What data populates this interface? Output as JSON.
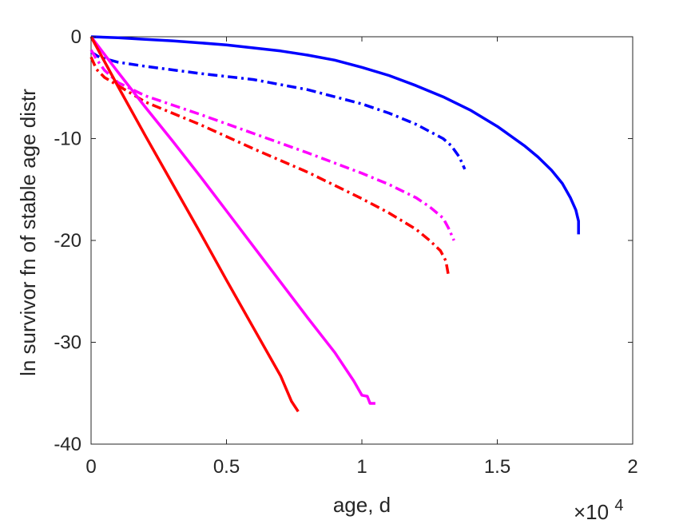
{
  "chart_data": {
    "type": "line",
    "title": "",
    "xlabel": "age, d",
    "ylabel": "ln survivor fn of stable age distr",
    "x_multiplier": {
      "base": "×10",
      "exponent": "4"
    },
    "xlim": [
      0,
      20000
    ],
    "ylim": [
      -40,
      0
    ],
    "xticks": [
      0,
      5000,
      10000,
      15000,
      20000
    ],
    "xtick_labels": [
      "0",
      "0.5",
      "1",
      "1.5",
      "2"
    ],
    "yticks": [
      0,
      -10,
      -20,
      -30,
      -40
    ],
    "ytick_labels": [
      "0",
      "-10",
      "-20",
      "-30",
      "-40"
    ],
    "grid": false,
    "series": [
      {
        "color": "#0000ff",
        "style": "solid",
        "x": [
          0,
          1000,
          2000,
          3000,
          4000,
          5000,
          6000,
          7000,
          8000,
          9000,
          10000,
          11000,
          12000,
          13000,
          14000,
          15000,
          16000,
          16500,
          17000,
          17400,
          17700,
          17900,
          18000,
          18000
        ],
        "y": [
          0,
          -0.1,
          -0.25,
          -0.4,
          -0.6,
          -0.8,
          -1.1,
          -1.4,
          -1.8,
          -2.3,
          -3.0,
          -3.8,
          -4.8,
          -5.9,
          -7.2,
          -8.8,
          -10.7,
          -11.8,
          -13.1,
          -14.4,
          -15.8,
          -17.0,
          -18.1,
          -19.4
        ]
      },
      {
        "color": "#0000ff",
        "style": "dashdot",
        "x": [
          0,
          300,
          1000,
          2000,
          4000,
          6000,
          8000,
          10000,
          11000,
          12000,
          12500,
          13000,
          13300,
          13600,
          13800
        ],
        "y": [
          -1.5,
          -2.0,
          -2.5,
          -2.9,
          -3.6,
          -4.2,
          -5.2,
          -6.6,
          -7.5,
          -8.6,
          -9.3,
          -10.0,
          -10.7,
          -11.8,
          -13.0
        ]
      },
      {
        "color": "#ff00ff",
        "style": "dashdot",
        "x": [
          0,
          200,
          500,
          1000,
          2000,
          4000,
          6000,
          8000,
          10000,
          11000,
          12000,
          12500,
          13000,
          13200,
          13400
        ],
        "y": [
          -1.3,
          -2.2,
          -3.3,
          -4.5,
          -5.8,
          -7.6,
          -9.5,
          -11.4,
          -13.4,
          -14.5,
          -15.8,
          -16.7,
          -17.8,
          -18.8,
          -20.0
        ]
      },
      {
        "color": "#ff0000",
        "style": "dashdot",
        "x": [
          0,
          200,
          500,
          1000,
          2000,
          4000,
          6000,
          8000,
          10000,
          11000,
          12000,
          12500,
          12900,
          13100,
          13200
        ],
        "y": [
          -2.0,
          -3.2,
          -4.0,
          -4.8,
          -6.4,
          -8.6,
          -11.0,
          -13.3,
          -15.9,
          -17.3,
          -18.9,
          -20.0,
          -21.0,
          -22.0,
          -23.5
        ]
      },
      {
        "color": "#ff00ff",
        "style": "solid",
        "x": [
          0,
          1000,
          2000,
          3000,
          4000,
          5000,
          6000,
          7000,
          8000,
          9000,
          9700,
          10000,
          10200,
          10300,
          10500
        ],
        "y": [
          0,
          -3.5,
          -6.9,
          -10.2,
          -13.6,
          -17.1,
          -20.6,
          -24.1,
          -27.6,
          -31.0,
          -33.8,
          -35.2,
          -35.3,
          -36.0,
          -36.0
        ]
      },
      {
        "color": "#ff0000",
        "style": "solid",
        "x": [
          0,
          1000,
          2000,
          3000,
          4000,
          5000,
          6000,
          7000,
          7400,
          7650
        ],
        "y": [
          0,
          -4.9,
          -9.7,
          -14.4,
          -19.1,
          -23.9,
          -28.6,
          -33.3,
          -35.8,
          -36.8
        ]
      }
    ]
  }
}
